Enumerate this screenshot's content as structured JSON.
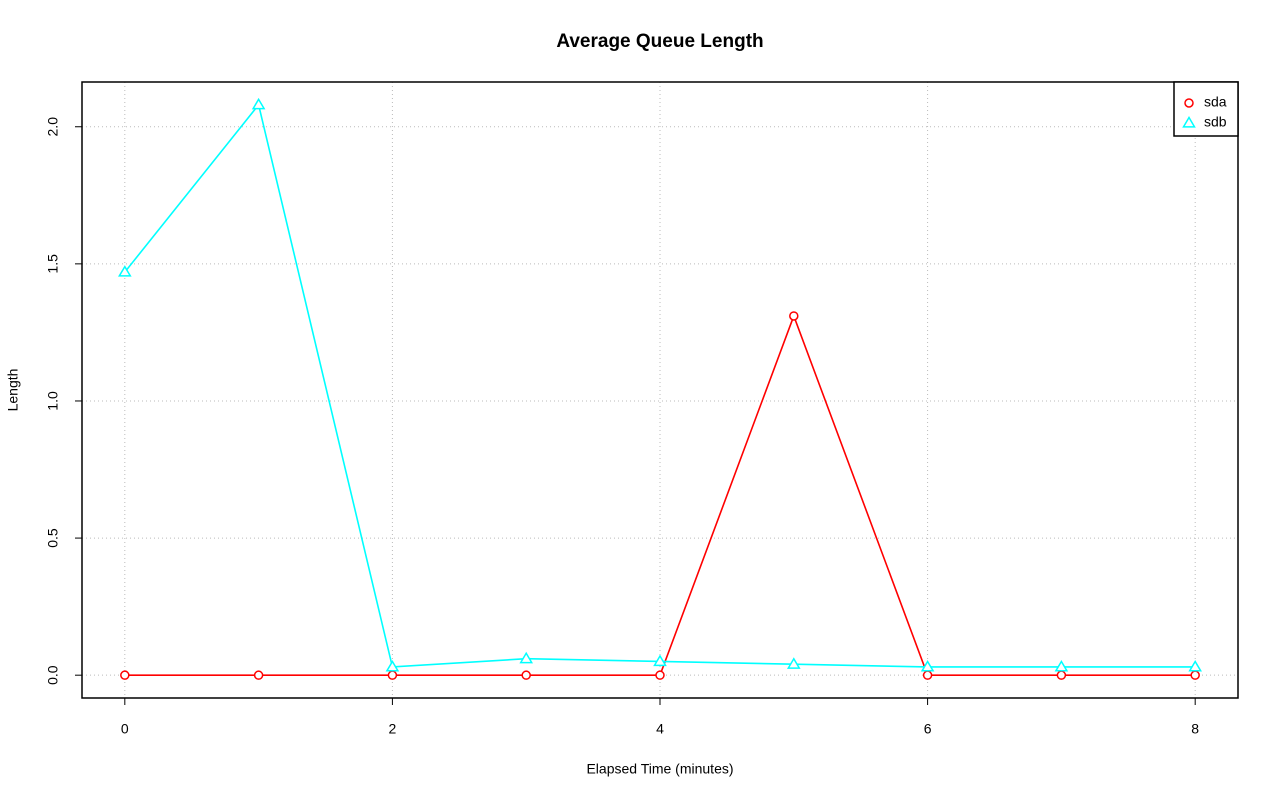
{
  "chart_data": {
    "type": "line",
    "title": "Average Queue Length",
    "x_label": "Elapsed Time (minutes)",
    "y_label": "Length",
    "x": [
      0,
      1,
      2,
      3,
      4,
      5,
      6,
      7,
      8
    ],
    "series": [
      {
        "name": "sda",
        "color": "#ff0000",
        "marker": "circle",
        "values": [
          0,
          0,
          0,
          0,
          0,
          1.31,
          0,
          0,
          0
        ]
      },
      {
        "name": "sdb",
        "color": "#00ffff",
        "marker": "triangle",
        "values": [
          1.47,
          2.08,
          0.03,
          0.06,
          0.05,
          0.04,
          0.03,
          0.03,
          0.03
        ]
      }
    ],
    "xlim": [
      -0.32,
      8.32
    ],
    "xticks": [
      0,
      2,
      4,
      6,
      8
    ],
    "ylim": [
      -0.0832,
      2.1632
    ],
    "yticks": [
      {
        "value": 0,
        "label": "0.0"
      },
      {
        "value": 0.5,
        "label": "0.5"
      },
      {
        "value": 1,
        "label": "1.0"
      },
      {
        "value": 1.5,
        "label": "1.5"
      },
      {
        "value": 2,
        "label": "2.0"
      }
    ],
    "grid": true,
    "legend": "top-right"
  }
}
